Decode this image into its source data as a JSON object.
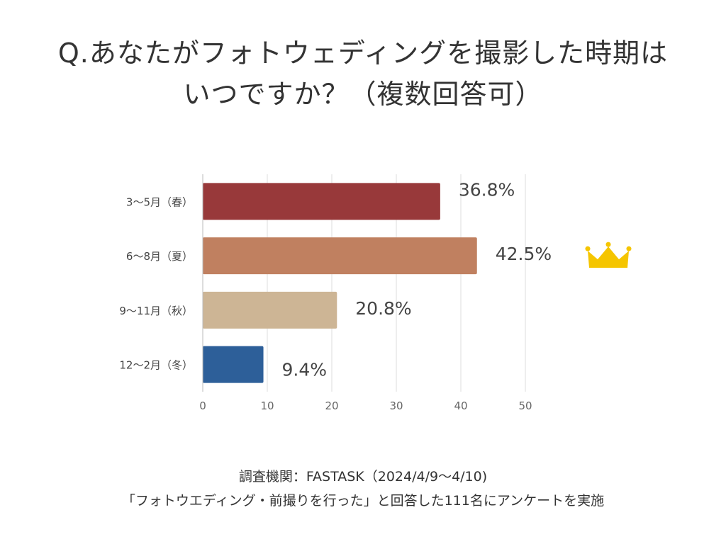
{
  "title": {
    "line1": "Q.あなたがフォトウェディングを撮影した時期は",
    "line2": "いつですか？（複数回答可）"
  },
  "chart_data": {
    "type": "bar",
    "orientation": "horizontal",
    "categories": [
      "3～5月（春）",
      "6～8月（夏）",
      "9～11月（秋）",
      "12～2月（冬）"
    ],
    "values": [
      36.8,
      42.5,
      20.8,
      9.4
    ],
    "value_labels": [
      "36.8%",
      "42.5%",
      "20.8%",
      "9.4%"
    ],
    "colors": [
      "#98393a",
      "#c08060",
      "#cdb595",
      "#2d5f99"
    ],
    "xlim": [
      0,
      50
    ],
    "xticks": [
      0,
      10,
      20,
      30,
      40,
      50
    ],
    "xlabel": "",
    "ylabel": "",
    "grid": true,
    "highlight_icon": "crown-icon",
    "highlight_index": 1,
    "highlight_color": "#f5c500"
  },
  "footer": {
    "line1": "調査機関：FASTASK（2024/4/9～4/10)",
    "line2": "「フォトウエディング・前撮りを行った」と回答した111名にアンケートを実施"
  }
}
